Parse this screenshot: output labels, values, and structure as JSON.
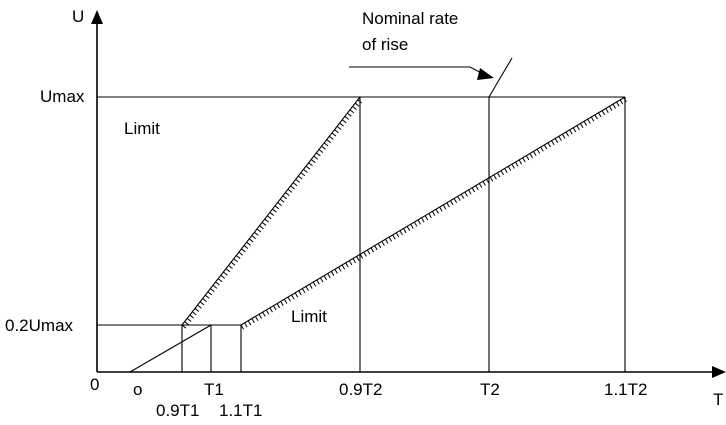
{
  "axes": {
    "y_label": "U",
    "x_label": "T",
    "origin": "0"
  },
  "y_ticks": {
    "umax": "Umax",
    "u02": "0.2Umax"
  },
  "x_ticks": {
    "o": "o",
    "t09_1": "0.9T1",
    "t1": "T1",
    "t11_1": "1.1T1",
    "t09_2": "0.9T2",
    "t2": "T2",
    "t11_2": "1.1T2"
  },
  "annotations": {
    "nominal_line1": "Nominal rate",
    "nominal_line2": "of rise",
    "limit_upper": "Limit",
    "limit_lower": "Limit"
  },
  "colors": {
    "ink": "#000000",
    "background": "#ffffff"
  }
}
